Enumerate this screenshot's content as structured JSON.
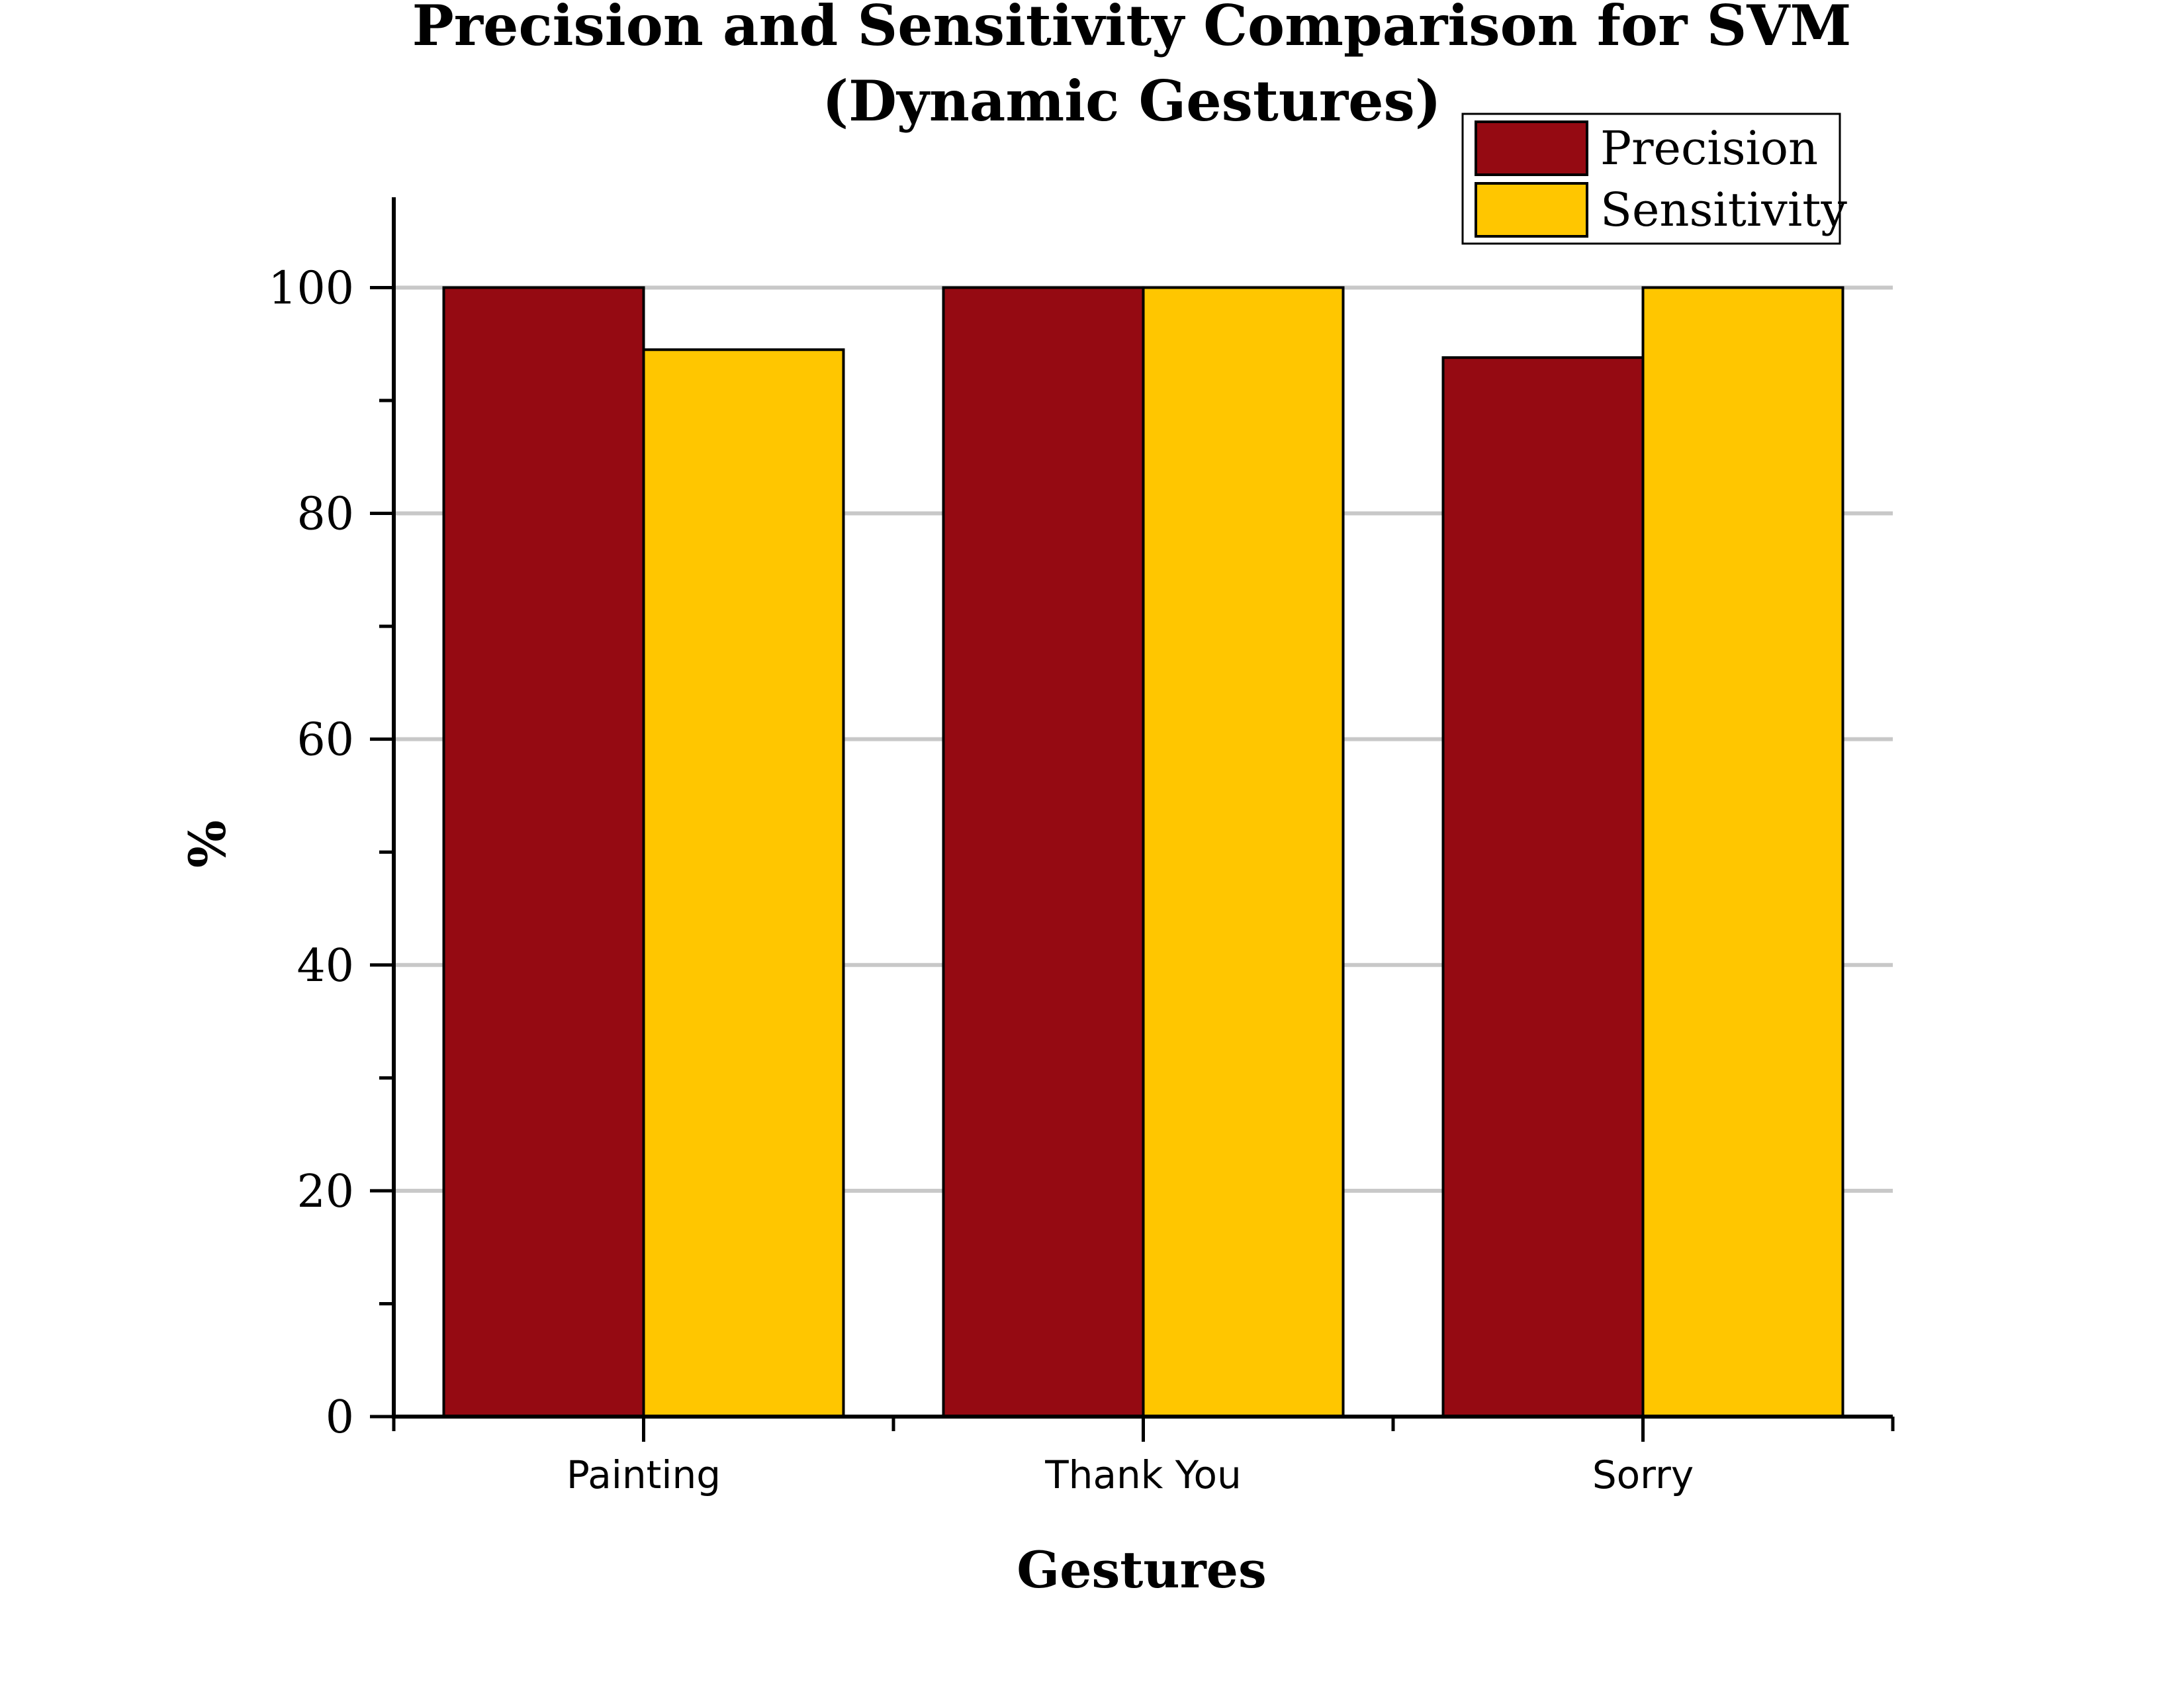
{
  "chart_data": {
    "type": "bar",
    "title": "Precision and Sensitivity Comparison for SVM",
    "subtitle": "(Dynamic Gestures)",
    "xlabel": "Gestures",
    "ylabel": "%",
    "categories": [
      "Painting",
      "Thank You",
      "Sorry"
    ],
    "series": [
      {
        "name": "Precision",
        "color": "#950A12",
        "values": [
          100,
          100,
          93.8
        ]
      },
      {
        "name": "Sensitivity",
        "color": "#FFC600",
        "values": [
          94.5,
          100,
          100
        ]
      }
    ],
    "ylim": [
      0,
      108
    ],
    "yticks": [
      0,
      20,
      40,
      60,
      80,
      100
    ],
    "grid": true,
    "legend_position": "top-right"
  }
}
